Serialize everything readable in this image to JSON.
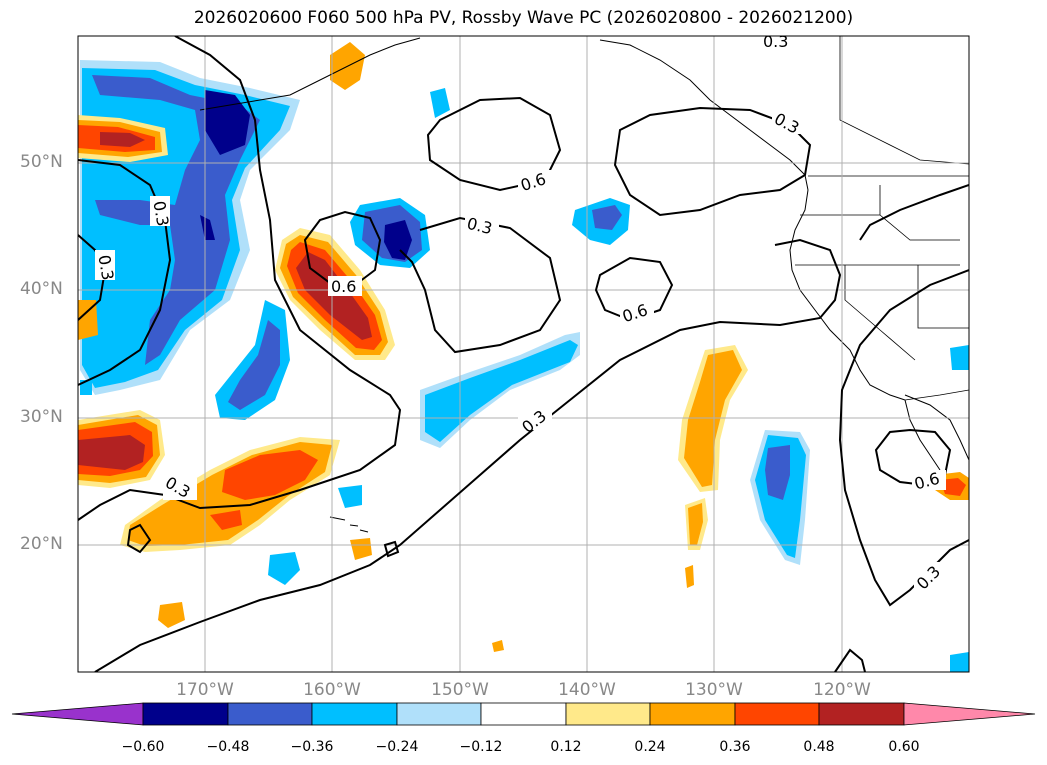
{
  "title": "2026020600 F060 500 hPa PV, Rossby Wave PC (2026020800 - 2026021200)",
  "lat_labels": [
    "50°N",
    "40°N",
    "30°N",
    "20°N"
  ],
  "lon_labels": [
    "170°W",
    "160°W",
    "150°W",
    "140°W",
    "130°W",
    "120°W"
  ],
  "colorbar": {
    "ticks": [
      "−0.60",
      "−0.48",
      "−0.36",
      "−0.24",
      "−0.12",
      "0.12",
      "0.24",
      "0.36",
      "0.48",
      "0.60"
    ],
    "colors": [
      "#9932cc",
      "#00008b",
      "#3a5ccc",
      "#00bfff",
      "#b0e0fa",
      "#ffffff",
      "#ffe98a",
      "#ffa500",
      "#ff4500",
      "#b22222",
      "#ff88aa"
    ]
  },
  "contour_labels": [
    "0.3",
    "0.3",
    "0.6",
    "0.3",
    "0.3",
    "0.6",
    "0.3",
    "0.6",
    "0.3",
    "0.3",
    "0.6",
    "0.3"
  ],
  "map": {
    "extent_lon": [
      -180,
      -110
    ],
    "extent_lat": [
      10,
      60
    ],
    "shading_colors": {
      "neg_weak": "#b0e0fa",
      "neg_mid": "#00bfff",
      "neg_strong": "#3a5ccc",
      "neg_max": "#00008b",
      "pos_weak": "#ffe98a",
      "pos_mid": "#ffa500",
      "pos_strong": "#ff4500",
      "pos_max": "#b22222"
    }
  }
}
